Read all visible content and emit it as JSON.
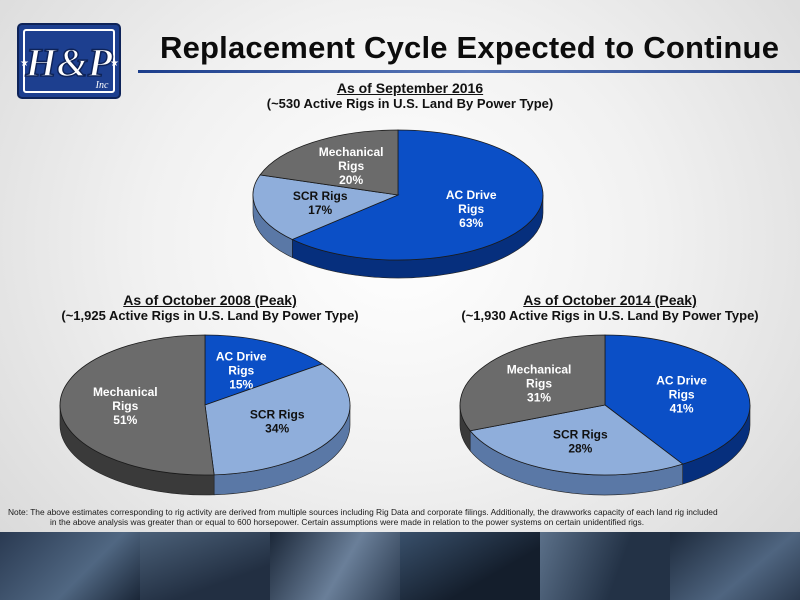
{
  "title": "Replacement Cycle Expected to Continue",
  "logo": {
    "text": "H&P",
    "sub": "Inc"
  },
  "colors": {
    "ac_drive": "#0b4fc6",
    "scr": "#8faedb",
    "mechanical": "#6b6b6b",
    "ac_drive_side": "#062f7d",
    "scr_side": "#5a78a6",
    "mechanical_side": "#3a3a3a"
  },
  "chart_data": [
    {
      "type": "pie",
      "title": "As of September 2016",
      "subtitle": "(~530 Active Rigs in U.S. Land By Power Type)",
      "slices": [
        {
          "label_lines": [
            "AC Drive",
            "Rigs"
          ],
          "value": 63,
          "value_label": "63%",
          "color_key": "ac_drive"
        },
        {
          "label_lines": [
            "SCR Rigs"
          ],
          "value": 17,
          "value_label": "17%",
          "color_key": "scr"
        },
        {
          "label_lines": [
            "Mechanical",
            "Rigs"
          ],
          "value": 20,
          "value_label": "20%",
          "color_key": "mechanical"
        }
      ]
    },
    {
      "type": "pie",
      "title": "As of October 2008 (Peak)",
      "subtitle": "(~1,925 Active Rigs in U.S. Land By Power Type)",
      "slices": [
        {
          "label_lines": [
            "AC Drive",
            "Rigs"
          ],
          "value": 15,
          "value_label": "15%",
          "color_key": "ac_drive"
        },
        {
          "label_lines": [
            "SCR Rigs"
          ],
          "value": 34,
          "value_label": "34%",
          "color_key": "scr"
        },
        {
          "label_lines": [
            "Mechanical",
            "Rigs"
          ],
          "value": 51,
          "value_label": "51%",
          "color_key": "mechanical"
        }
      ]
    },
    {
      "type": "pie",
      "title": "As of October 2014 (Peak)",
      "subtitle": "(~1,930 Active Rigs in U.S. Land By Power Type)",
      "slices": [
        {
          "label_lines": [
            "AC Drive",
            "Rigs"
          ],
          "value": 41,
          "value_label": "41%",
          "color_key": "ac_drive"
        },
        {
          "label_lines": [
            "SCR Rigs"
          ],
          "value": 28,
          "value_label": "28%",
          "color_key": "scr"
        },
        {
          "label_lines": [
            "Mechanical",
            "Rigs"
          ],
          "value": 31,
          "value_label": "31%",
          "color_key": "mechanical"
        }
      ]
    }
  ],
  "note": {
    "line1": "Note:   The above estimates corresponding to rig activity are derived from multiple sources including Rig Data and corporate filings.  Additionally, the drawworks capacity of each land rig included",
    "line2": "in the above analysis was greater than or equal to 600 horsepower.  Certain assumptions were made in relation to the power systems on certain unidentified rigs."
  }
}
